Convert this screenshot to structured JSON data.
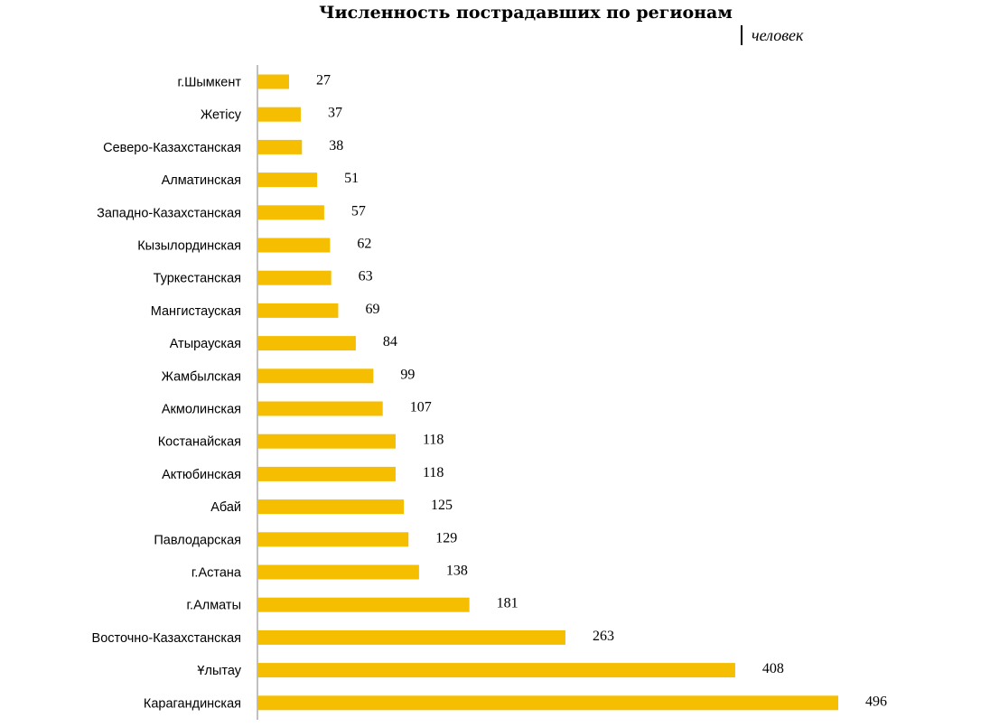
{
  "chart_data": {
    "type": "bar",
    "orientation": "horizontal",
    "title": "Численность пострадавших по регионам",
    "unit_label": "человек",
    "categories": [
      "г.Шымкент",
      "Жетісу",
      "Северо-Казахстанская",
      "Алматинская",
      "Западно-Казахстанская",
      "Кызылординская",
      "Туркестанская",
      "Мангистауская",
      "Атырауская",
      "Жамбылская",
      "Акмолинская",
      "Костанайская",
      "Актюбинская",
      "Абай",
      "Павлодарская",
      "г.Астана",
      "г.Алматы",
      "Восточно-Казахстанская",
      "Ұлытау",
      "Карагандинская"
    ],
    "values": [
      27,
      37,
      38,
      51,
      57,
      62,
      63,
      69,
      84,
      99,
      107,
      118,
      118,
      125,
      129,
      138,
      181,
      263,
      408,
      496
    ],
    "xlim": [
      0,
      496
    ],
    "grid": false,
    "legend": "none",
    "data_labels": true,
    "bar_color": "#F5BE00",
    "axis_color": "#808080"
  }
}
